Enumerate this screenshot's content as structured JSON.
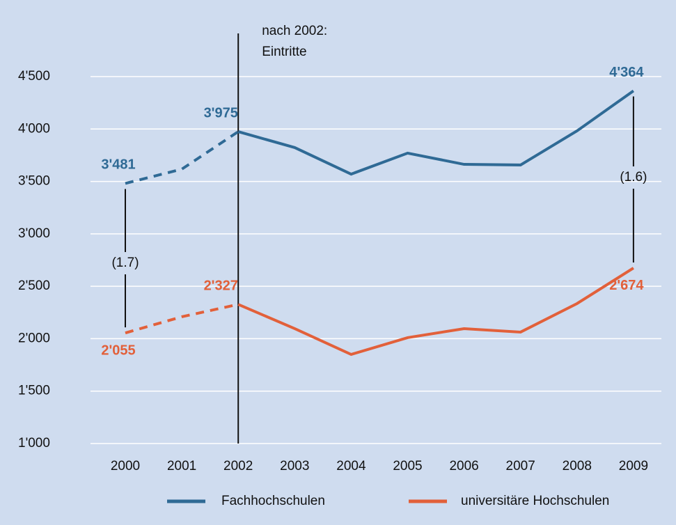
{
  "chart_data": {
    "type": "line",
    "categories": [
      "2000",
      "2001",
      "2002",
      "2003",
      "2004",
      "2005",
      "2006",
      "2007",
      "2008",
      "2009"
    ],
    "series": [
      {
        "name": "Fachhochschulen",
        "color": "#2f6a95",
        "values": [
          3481,
          3617,
          3975,
          3823,
          3570,
          3770,
          3663,
          3657,
          3982,
          4364
        ],
        "value_labels": [
          "3'481",
          null,
          "3'975",
          null,
          null,
          null,
          null,
          null,
          null,
          "4'364"
        ]
      },
      {
        "name": "universitäre Hochschulen",
        "color": "#e2603a",
        "values": [
          2055,
          2209,
          2327,
          2096,
          1850,
          2010,
          2096,
          2063,
          2335,
          2674
        ],
        "value_labels": [
          "2'055",
          null,
          "2'327",
          null,
          null,
          null,
          null,
          null,
          null,
          "2'674"
        ]
      }
    ],
    "marker_line": {
      "category": "2002",
      "label": [
        "nach 2002:",
        "Eintritte"
      ]
    },
    "dashed_before_marker": true,
    "ratio_labels": [
      "(1.7)",
      "(1.6)"
    ],
    "ylim": [
      1000,
      4500
    ],
    "yticks": [
      {
        "value": 1000,
        "label": "1'000"
      },
      {
        "value": 1500,
        "label": "1'500"
      },
      {
        "value": 2000,
        "label": "2'000"
      },
      {
        "value": 2500,
        "label": "2'500"
      },
      {
        "value": 3000,
        "label": "3'000"
      },
      {
        "value": 3500,
        "label": "3'500"
      },
      {
        "value": 4000,
        "label": "4'000"
      },
      {
        "value": 4500,
        "label": "4'500"
      }
    ],
    "grid": true,
    "background": "#cfdcef",
    "legend": "bottom"
  }
}
